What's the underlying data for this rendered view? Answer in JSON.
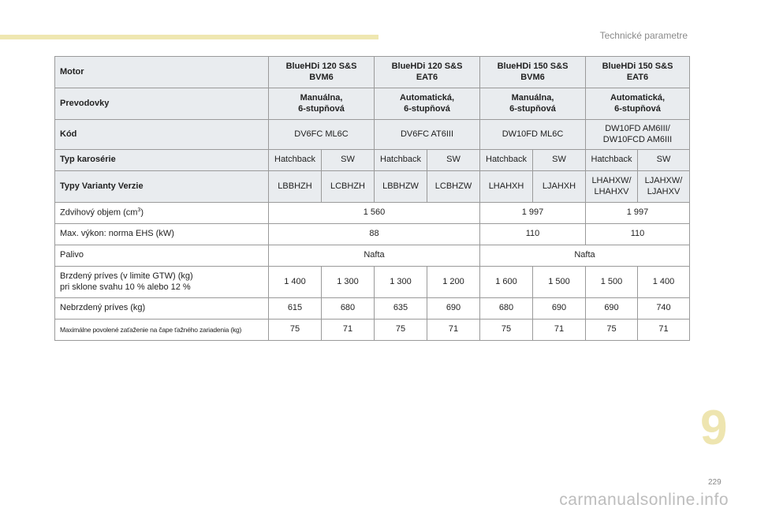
{
  "header": {
    "section": "Technické parametre"
  },
  "footer": {
    "chapter": "9",
    "page": "229",
    "watermark": "carmanualsonline.info"
  },
  "table": {
    "rows": {
      "motor": {
        "label": "Motor",
        "cols": [
          {
            "l1": "BlueHDi 120 S&S",
            "l2": "BVM6"
          },
          {
            "l1": "BlueHDi 120 S&S",
            "l2": "EAT6"
          },
          {
            "l1": "BlueHDi 150 S&S",
            "l2": "BVM6"
          },
          {
            "l1": "BlueHDi 150 S&S",
            "l2": "EAT6"
          }
        ]
      },
      "prevodovky": {
        "label": "Prevodovky",
        "cols": [
          {
            "l1": "Manuálna,",
            "l2": "6-stupňová"
          },
          {
            "l1": "Automatická,",
            "l2": "6-stupňová"
          },
          {
            "l1": "Manuálna,",
            "l2": "6-stupňová"
          },
          {
            "l1": "Automatická,",
            "l2": "6-stupňová"
          }
        ]
      },
      "kod": {
        "label": "Kód",
        "cols": [
          {
            "l1": "DV6FC ML6C"
          },
          {
            "l1": "DV6FC AT6III"
          },
          {
            "l1": "DW10FD ML6C"
          },
          {
            "l1": "DW10FD AM6III/",
            "l2": "DW10FCD AM6III"
          }
        ]
      },
      "karoseria": {
        "label": "Typ karosérie",
        "values": [
          "Hatchback",
          "SW",
          "Hatchback",
          "SW",
          "Hatchback",
          "SW",
          "Hatchback",
          "SW"
        ]
      },
      "varianty": {
        "label": "Typy Varianty Verzie",
        "values": [
          {
            "l1": "LBBHZH"
          },
          {
            "l1": "LCBHZH"
          },
          {
            "l1": "LBBHZW"
          },
          {
            "l1": "LCBHZW"
          },
          {
            "l1": "LHAHXH"
          },
          {
            "l1": "LJAHXH"
          },
          {
            "l1": "LHAHXW/",
            "l2": "LHAHXV"
          },
          {
            "l1": "LJAHXW/",
            "l2": "LJAHXV"
          }
        ]
      },
      "objem": {
        "label": "Zdvihový objem (cm",
        "label_sup": "3",
        "label_end": ")",
        "values": [
          "1 560",
          "1 997",
          "1 997"
        ]
      },
      "vykon": {
        "label": "Max. výkon: norma EHS (kW)",
        "values": [
          "88",
          "110",
          "110"
        ]
      },
      "palivo": {
        "label": "Palivo",
        "values": [
          "Nafta",
          "Nafta"
        ]
      },
      "brzdeny": {
        "label_l1": "Brzdený príves (v limite GTW) (kg)",
        "label_l2": "pri sklone svahu 10 % alebo 12 %",
        "values": [
          "1 400",
          "1 300",
          "1 300",
          "1 200",
          "1 600",
          "1 500",
          "1 500",
          "1 400"
        ]
      },
      "nebrzdeny": {
        "label": "Nebrzdený príves (kg)",
        "values": [
          "615",
          "680",
          "635",
          "690",
          "680",
          "690",
          "690",
          "740"
        ]
      },
      "zatazenie": {
        "label": "Maximálne povolené zaťaženie na čape ťažného zariadenia (kg)",
        "values": [
          "75",
          "71",
          "75",
          "71",
          "75",
          "71",
          "75",
          "71"
        ]
      }
    }
  }
}
